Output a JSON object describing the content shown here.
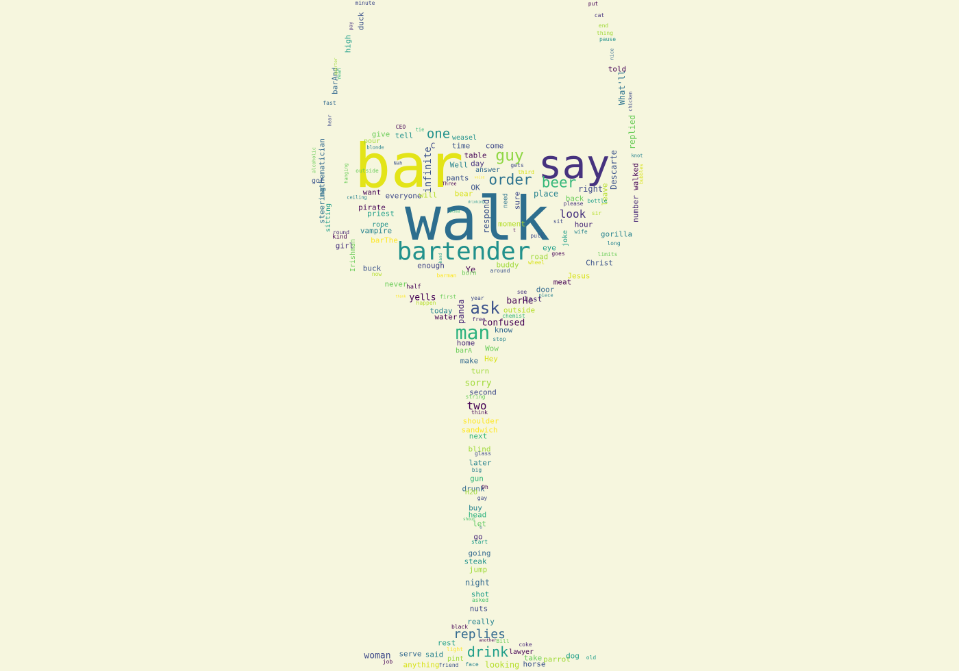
{
  "palette": [
    "#440154",
    "#46327e",
    "#365c8d",
    "#277f8e",
    "#1fa187",
    "#4ac16d",
    "#a0da39",
    "#e3e418"
  ],
  "words": [
    {
      "t": "bar",
      "c": "#e3e418"
    },
    {
      "t": "walk",
      "c": "#2d6e8e"
    },
    {
      "t": "say",
      "c": "#46327e"
    },
    {
      "t": "bartender",
      "c": "#21918c"
    },
    {
      "t": "man",
      "c": "#2cb17e"
    },
    {
      "t": "ask",
      "c": "#3b528b"
    },
    {
      "t": "order",
      "c": "#2c728e"
    },
    {
      "t": "beer",
      "c": "#35b779"
    },
    {
      "t": "guy",
      "c": "#8fd744"
    },
    {
      "t": "drink",
      "c": "#1f9e89"
    },
    {
      "t": "replies",
      "c": "#31688e"
    },
    {
      "t": "one",
      "c": "#21918c"
    },
    {
      "t": "look",
      "c": "#46327e"
    },
    {
      "t": "two",
      "c": "#440154"
    },
    {
      "t": "infinite",
      "c": "#3b528b"
    },
    {
      "t": "mathematician",
      "c": "#31688e"
    },
    {
      "t": "Descarte",
      "c": "#3b528b"
    },
    {
      "t": "number",
      "c": "#482878"
    },
    {
      "t": "walked",
      "c": "#440154"
    },
    {
      "t": "replied",
      "c": "#6ccd5a"
    },
    {
      "t": "What'll",
      "c": "#2c728e"
    },
    {
      "t": "told",
      "c": "#440154"
    },
    {
      "t": "duck",
      "c": "#3b528b"
    },
    {
      "t": "high",
      "c": "#1f9e89"
    },
    {
      "t": "barAnd",
      "c": "#31688e"
    },
    {
      "t": "steering",
      "c": "#2c728e"
    },
    {
      "t": "sitting",
      "c": "#1f9e89"
    },
    {
      "t": "respond",
      "c": "#3b528b"
    },
    {
      "t": "sure",
      "c": "#3e4989"
    },
    {
      "t": "panda",
      "c": "#482878"
    },
    {
      "t": "joke",
      "c": "#1f9e89"
    },
    {
      "t": "leave",
      "c": "#b5de2b"
    },
    {
      "t": "need",
      "c": "#2c728e"
    },
    {
      "t": "Irishman",
      "c": "#6ccd5a"
    },
    {
      "t": "Ye",
      "c": "#440154"
    },
    {
      "t": "pirate",
      "c": "#440154"
    },
    {
      "t": "priest",
      "c": "#1f9e89"
    },
    {
      "t": "vampire",
      "c": "#26828e"
    },
    {
      "t": "rope",
      "c": "#21918c"
    },
    {
      "t": "barThe",
      "c": "#fde725"
    },
    {
      "t": "girl",
      "c": "#46327e"
    },
    {
      "t": "kind",
      "c": "#440154"
    },
    {
      "t": "round",
      "c": "#482878"
    },
    {
      "t": "buck",
      "c": "#3b528b"
    },
    {
      "t": "now",
      "c": "#b5de2b"
    },
    {
      "t": "enough",
      "c": "#414487"
    },
    {
      "t": "barman",
      "c": "#fde725"
    },
    {
      "t": "born",
      "c": "#6ccd5a"
    },
    {
      "t": "never",
      "c": "#6ccd5a"
    },
    {
      "t": "half",
      "c": "#440154"
    },
    {
      "t": "yells",
      "c": "#440154"
    },
    {
      "t": "first",
      "c": "#6ccd5a"
    },
    {
      "t": "today",
      "c": "#26828e"
    },
    {
      "t": "water",
      "c": "#440154"
    },
    {
      "t": "free",
      "c": "#482878"
    },
    {
      "t": "year",
      "c": "#3e4989"
    },
    {
      "t": "happen",
      "c": "#b5de2b"
    },
    {
      "t": "thank",
      "c": "#fde725"
    },
    {
      "t": "barHe",
      "c": "#440154"
    },
    {
      "t": "see",
      "c": "#46327e"
    },
    {
      "t": "door",
      "c": "#31688e"
    },
    {
      "t": "piece",
      "c": "#26828e"
    },
    {
      "t": "outside",
      "c": "#b5de2b"
    },
    {
      "t": "chemist",
      "c": "#35b779"
    },
    {
      "t": "confused",
      "c": "#440154"
    },
    {
      "t": "know",
      "c": "#31688e"
    },
    {
      "t": "stop",
      "c": "#26828e"
    },
    {
      "t": "home",
      "c": "#482878"
    },
    {
      "t": "barA",
      "c": "#6ccd5a"
    },
    {
      "t": "Wow",
      "c": "#6ccd5a"
    },
    {
      "t": "Hey",
      "c": "#d8e219"
    },
    {
      "t": "make",
      "c": "#31688e"
    },
    {
      "t": "turn",
      "c": "#a0da39"
    },
    {
      "t": "sorry",
      "c": "#a0da39"
    },
    {
      "t": "second",
      "c": "#3e4989"
    },
    {
      "t": "string",
      "c": "#6ccd5a"
    },
    {
      "t": "shoulder",
      "c": "#fde725"
    },
    {
      "t": "think",
      "c": "#440154"
    },
    {
      "t": "sandwich",
      "c": "#fde725"
    },
    {
      "t": "next",
      "c": "#35b779"
    },
    {
      "t": "blind",
      "c": "#a0da39"
    },
    {
      "t": "glass",
      "c": "#3e4989"
    },
    {
      "t": "later",
      "c": "#26828e"
    },
    {
      "t": "big",
      "c": "#277f8e"
    },
    {
      "t": "gun",
      "c": "#35b779"
    },
    {
      "t": "drunk",
      "c": "#31688e"
    },
    {
      "t": "Oh",
      "c": "#440154"
    },
    {
      "t": "H2O",
      "c": "#a0da39"
    },
    {
      "t": "gay",
      "c": "#3e4989"
    },
    {
      "t": "buy",
      "c": "#26828e"
    },
    {
      "t": "head",
      "c": "#2cb17e"
    },
    {
      "t": "shout",
      "c": "#4ac16d"
    },
    {
      "t": "let",
      "c": "#5ec962"
    },
    {
      "t": "o",
      "c": "#31688e"
    },
    {
      "t": "go",
      "c": "#482878"
    },
    {
      "t": "start",
      "c": "#1f9e89"
    },
    {
      "t": "going",
      "c": "#31688e"
    },
    {
      "t": "steak",
      "c": "#21918c"
    },
    {
      "t": "jump",
      "c": "#a0da39"
    },
    {
      "t": "night",
      "c": "#31688e"
    },
    {
      "t": "shot",
      "c": "#1f9e89"
    },
    {
      "t": "asked",
      "c": "#4ac16d"
    },
    {
      "t": "nuts",
      "c": "#3e4989"
    },
    {
      "t": "really",
      "c": "#26828e"
    },
    {
      "t": "black",
      "c": "#440154"
    },
    {
      "t": "rest",
      "c": "#1f9e89"
    },
    {
      "t": "another",
      "c": "#440154"
    },
    {
      "t": "Bill",
      "c": "#6ccd5a"
    },
    {
      "t": "coke",
      "c": "#482878"
    },
    {
      "t": "light",
      "c": "#fde725"
    },
    {
      "t": "lawyer",
      "c": "#440154"
    },
    {
      "t": "woman",
      "c": "#3e4989"
    },
    {
      "t": "serve",
      "c": "#31688e"
    },
    {
      "t": "said",
      "c": "#26828e"
    },
    {
      "t": "pint",
      "c": "#a0da39"
    },
    {
      "t": "take",
      "c": "#6ccd5a"
    },
    {
      "t": "parrot",
      "c": "#a0da39"
    },
    {
      "t": "dog",
      "c": "#1f9e89"
    },
    {
      "t": "old",
      "c": "#1f9e89"
    },
    {
      "t": "job",
      "c": "#440154"
    },
    {
      "t": "anything",
      "c": "#d8e219"
    },
    {
      "t": "friend",
      "c": "#3b528b"
    },
    {
      "t": "face",
      "c": "#26828e"
    },
    {
      "t": "looking",
      "c": "#b5de2b"
    },
    {
      "t": "horse",
      "c": "#3b528b"
    },
    {
      "t": "minute",
      "c": "#3e4989"
    },
    {
      "t": "pay",
      "c": "#46327e"
    },
    {
      "t": "put",
      "c": "#440154"
    },
    {
      "t": "cat",
      "c": "#46327e"
    },
    {
      "t": "end",
      "c": "#a0da39"
    },
    {
      "t": "thing",
      "c": "#a0da39"
    },
    {
      "t": "pause",
      "c": "#21918c"
    },
    {
      "t": "nice",
      "c": "#31688e"
    },
    {
      "t": "Yeah",
      "c": "#35b779"
    },
    {
      "t": "quarter",
      "c": "#a0da39"
    },
    {
      "t": "fast",
      "c": "#31688e"
    },
    {
      "t": "hear",
      "c": "#3e4989"
    },
    {
      "t": "chicken",
      "c": "#3e4989"
    },
    {
      "t": "alcoholic",
      "c": "#6ccd5a"
    },
    {
      "t": "hanging",
      "c": "#6ccd5a"
    },
    {
      "t": "got",
      "c": "#3b528b"
    },
    {
      "t": "ceiling",
      "c": "#26828e"
    },
    {
      "t": "knot",
      "c": "#26828e"
    },
    {
      "t": "CEO",
      "c": "#440154"
    },
    {
      "t": "tie",
      "c": "#35b779"
    },
    {
      "t": "give",
      "c": "#6ccd5a"
    },
    {
      "t": "tell",
      "c": "#21918c"
    },
    {
      "t": "pour",
      "c": "#a0da39"
    },
    {
      "t": "blonde",
      "c": "#26828e"
    },
    {
      "t": "Nah",
      "c": "#3b528b"
    },
    {
      "t": "outside",
      "c": "#6ccd5a"
    },
    {
      "t": "C",
      "c": "#3e4989"
    },
    {
      "t": "time",
      "c": "#3b528b"
    },
    {
      "t": "weasel",
      "c": "#21918c"
    },
    {
      "t": "come",
      "c": "#3e4989"
    },
    {
      "t": "table",
      "c": "#440154"
    },
    {
      "t": "Well",
      "c": "#26828e"
    },
    {
      "t": "day",
      "c": "#46327e"
    },
    {
      "t": "gets",
      "c": "#3e4989"
    },
    {
      "t": "answer",
      "c": "#31688e"
    },
    {
      "t": "third",
      "c": "#d8e219"
    },
    {
      "t": "voice",
      "c": "#fde725"
    },
    {
      "t": "pants",
      "c": "#3b528b"
    },
    {
      "t": "Three",
      "c": "#440154"
    },
    {
      "t": "OK",
      "c": "#3b528b"
    },
    {
      "t": "want",
      "c": "#440154"
    },
    {
      "t": "everyone",
      "c": "#3e4989"
    },
    {
      "t": "will",
      "c": "#b5de2b"
    },
    {
      "t": "bear",
      "c": "#d8e219"
    },
    {
      "t": "drinking",
      "c": "#21918c"
    },
    {
      "t": "blood",
      "c": "#35b779"
    },
    {
      "t": "place",
      "c": "#26828e"
    },
    {
      "t": "right",
      "c": "#3e4989"
    },
    {
      "t": "back",
      "c": "#6ccd5a"
    },
    {
      "t": "please",
      "c": "#46327e"
    },
    {
      "t": "bottle",
      "c": "#1f9e89"
    },
    {
      "t": "sir",
      "c": "#b5de2b"
    },
    {
      "t": "moment",
      "c": "#b5de2b"
    },
    {
      "t": "sit",
      "c": "#3e4989"
    },
    {
      "t": "hour",
      "c": "#482878"
    },
    {
      "t": "wife",
      "c": "#26828e"
    },
    {
      "t": "pull",
      "c": "#3e4989"
    },
    {
      "t": "eye",
      "c": "#1f9e89"
    },
    {
      "t": "goes",
      "c": "#440154"
    },
    {
      "t": "road",
      "c": "#a0da39"
    },
    {
      "t": "wheel",
      "c": "#d8e219"
    },
    {
      "t": "buddy",
      "c": "#a0da39"
    },
    {
      "t": "around",
      "c": "#3b528b"
    },
    {
      "t": "gorilla",
      "c": "#26828e"
    },
    {
      "t": "long",
      "c": "#26828e"
    },
    {
      "t": "limits",
      "c": "#6ccd5a"
    },
    {
      "t": "Christ",
      "c": "#3b528b"
    },
    {
      "t": "Jesus",
      "c": "#d8e219"
    },
    {
      "t": "meat",
      "c": "#440154"
    },
    {
      "t": "hand",
      "c": "#1f9e89"
    },
    {
      "t": "last",
      "c": "#482878"
    },
    {
      "t": "t",
      "c": "#440154"
    },
    {
      "t": "bubbles",
      "c": "#d8e219"
    },
    {
      "t": "waiter",
      "c": "#d8e219"
    }
  ]
}
